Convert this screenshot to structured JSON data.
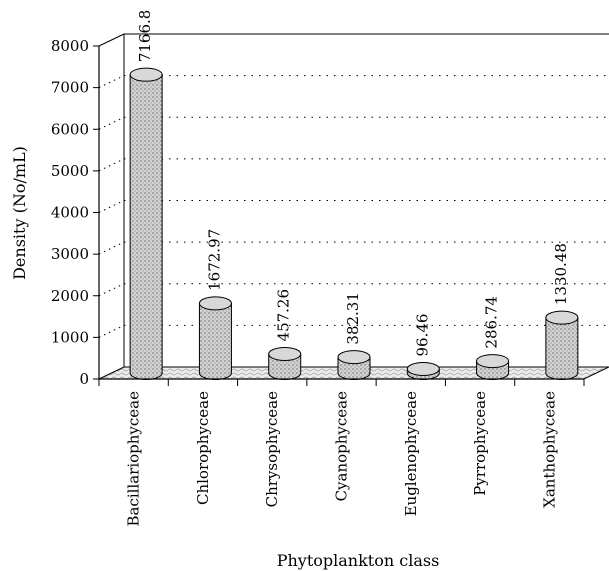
{
  "chart_data": {
    "type": "bar",
    "style": "3d-cylinder",
    "categories": [
      "Bacillariophyceae",
      "Chlorophyceae",
      "Chrysophyceae",
      "Cyanophyceae",
      "Euglenophyceae",
      "Pyrrophyceae",
      "Xanthophyceae"
    ],
    "values": [
      7166.8,
      1672.97,
      457.26,
      382.31,
      96.46,
      286.74,
      1330.48
    ],
    "value_labels": [
      "7166.8",
      "1672.97",
      "457.26",
      "382.31",
      "96.46",
      "286.74",
      "1330.48"
    ],
    "xlabel": "Phytoplankton class",
    "ylabel": "Density (No/mL)",
    "ylim": [
      0,
      8000
    ],
    "yticks": [
      0,
      1000,
      2000,
      3000,
      4000,
      5000,
      6000,
      7000,
      8000
    ],
    "grid": "dotted-horizontal",
    "legend": "none",
    "colors": {
      "bar_fill": "#cfcfcf",
      "floor_fill": "#e6e6e6",
      "axis": "#000000"
    }
  }
}
